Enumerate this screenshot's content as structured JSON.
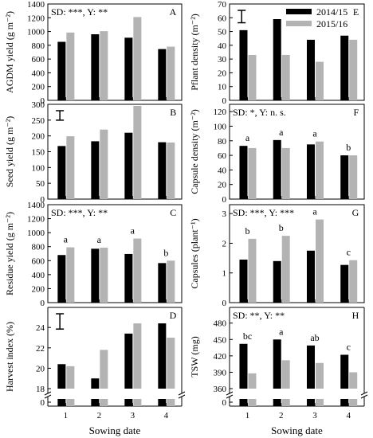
{
  "chart_data": [
    {
      "type": "bar",
      "panel": "A",
      "ylabel": "AGDM yield (g m⁻²)",
      "categories": [
        "1",
        "2",
        "3",
        "4"
      ],
      "series": [
        {
          "name": "2014/15",
          "values": [
            850,
            960,
            910,
            745
          ]
        },
        {
          "name": "2015/16",
          "values": [
            985,
            1005,
            1210,
            780
          ]
        }
      ],
      "ylim": [
        0,
        1400
      ],
      "yticks": [
        "0",
        "200",
        "400",
        "600",
        "800",
        "1000",
        "1200",
        "1400"
      ],
      "stats": "SD: ***, Y: **"
    },
    {
      "type": "bar",
      "panel": "B",
      "ylabel": "Seed yield (g m⁻²)",
      "categories": [
        "1",
        "2",
        "3",
        "4"
      ],
      "series": [
        {
          "name": "2014/15",
          "values": [
            168,
            183,
            210,
            180
          ]
        },
        {
          "name": "2015/16",
          "values": [
            199,
            220,
            295,
            179
          ]
        }
      ],
      "ylim": [
        0,
        300
      ],
      "yticks": [
        "0",
        "50",
        "100",
        "150",
        "200",
        "250",
        "300"
      ],
      "error_bar": {
        "value": 30
      }
    },
    {
      "type": "bar",
      "panel": "C",
      "ylabel": "Residue yield (g m⁻²)",
      "categories": [
        "1",
        "2",
        "3",
        "4"
      ],
      "series": [
        {
          "name": "2014/15",
          "values": [
            680,
            770,
            695,
            565
          ]
        },
        {
          "name": "2015/16",
          "values": [
            790,
            785,
            915,
            600
          ]
        }
      ],
      "ylim": [
        0,
        1400
      ],
      "yticks": [
        "0",
        "200",
        "400",
        "600",
        "800",
        "1000",
        "1200",
        "1400"
      ],
      "stats": "SD: ***, Y: **",
      "sig_letters": [
        "a",
        "a",
        "a",
        "b"
      ]
    },
    {
      "type": "bar",
      "panel": "D",
      "ylabel": "Harvest index (%)",
      "categories": [
        "1",
        "2",
        "3",
        "4"
      ],
      "series": [
        {
          "name": "2014/15",
          "values": [
            20.4,
            19.0,
            23.4,
            24.4
          ]
        },
        {
          "name": "2015/16",
          "values": [
            20.2,
            21.8,
            24.4,
            23.0
          ]
        }
      ],
      "ylim": [
        18,
        25.5
      ],
      "yticks": [
        "0",
        "18",
        "20",
        "22",
        "24"
      ],
      "axis_break": true,
      "error_bar": {
        "value": 1.5
      }
    },
    {
      "type": "bar",
      "panel": "E",
      "ylabel": "Pflant density (m⁻²)",
      "categories": [
        "1",
        "2",
        "3",
        "4"
      ],
      "series": [
        {
          "name": "2014/15",
          "values": [
            51,
            59,
            44,
            47
          ]
        },
        {
          "name": "2015/16",
          "values": [
            33,
            33,
            28,
            44
          ]
        }
      ],
      "ylim": [
        0,
        70
      ],
      "yticks": [
        "0",
        "10",
        "20",
        "30",
        "40",
        "50",
        "60",
        "70"
      ],
      "error_bar": {
        "value": 9
      },
      "legend": {
        "placement": "top-right",
        "entries": [
          "2014/15",
          "2015/16"
        ]
      }
    },
    {
      "type": "bar",
      "panel": "F",
      "ylabel": "Capsule density (m⁻²)",
      "categories": [
        "1",
        "2",
        "3",
        "4"
      ],
      "series": [
        {
          "name": "2014/15",
          "values": [
            73,
            81,
            75,
            60
          ]
        },
        {
          "name": "2015/16",
          "values": [
            70,
            70,
            79,
            60
          ]
        }
      ],
      "ylim": [
        0,
        130
      ],
      "yticks": [
        "0",
        "20",
        "40",
        "60",
        "80",
        "100",
        "120"
      ],
      "stats": "SD: *, Y: n. s.",
      "sig_letters": [
        "a",
        "a",
        "a",
        "b"
      ]
    },
    {
      "type": "bar",
      "panel": "G",
      "ylabel": "Capsules (plant⁻¹)",
      "categories": [
        "1",
        "2",
        "3",
        "4"
      ],
      "series": [
        {
          "name": "2014/15",
          "values": [
            1.45,
            1.4,
            1.75,
            1.27
          ]
        },
        {
          "name": "2015/16",
          "values": [
            2.15,
            2.25,
            2.8,
            1.43
          ]
        }
      ],
      "ylim": [
        0,
        3.3
      ],
      "yticks": [
        "0",
        "1",
        "2",
        "3"
      ],
      "stats": "SD: ***, Y: ***",
      "sig_letters": [
        "b",
        "b",
        "a",
        "c"
      ]
    },
    {
      "type": "bar",
      "panel": "H",
      "ylabel": "TSW (mg)",
      "categories": [
        "1",
        "2",
        "3",
        "4"
      ],
      "series": [
        {
          "name": "2014/15",
          "values": [
            442,
            450,
            439,
            422
          ]
        },
        {
          "name": "2015/16",
          "values": [
            388,
            412,
            407,
            390
          ]
        }
      ],
      "ylim": [
        360,
        500
      ],
      "yticks": [
        "0",
        "360",
        "390",
        "420",
        "450",
        "480"
      ],
      "axis_break": true,
      "stats": "SD: **, Y: **",
      "sig_letters": [
        "bc",
        "a",
        "ab",
        "c"
      ]
    }
  ],
  "xlabel": "Sowing date",
  "colors": {
    "series_2014_15": "#000000",
    "series_2015_16": "#b3b3b3"
  }
}
